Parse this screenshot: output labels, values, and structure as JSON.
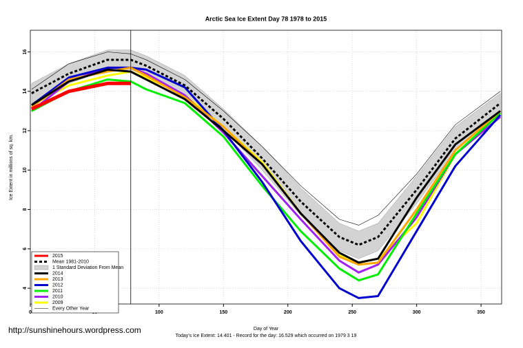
{
  "chart_data": {
    "type": "line",
    "title": "Arctic Sea Ice Extent Day 78 1978 to 2015",
    "y_label": "Ice Extent in millions of sq. km.",
    "x_label": "Day of Year",
    "footer": "Today's Ice Extent: 14.401  - Record for the day: 16.529 which occurred on 1979 3 19",
    "watermark": "http://sunshinehours.wordpress.com",
    "marker_day": 78,
    "xlim": [
      0,
      366
    ],
    "ylim": [
      3.2,
      17.1
    ],
    "xticks": [
      0,
      50,
      100,
      150,
      200,
      250,
      300,
      350
    ],
    "yticks": [
      4,
      6,
      8,
      10,
      12,
      14,
      16
    ],
    "grid": true,
    "legend": "bottom-left",
    "x": [
      1,
      30,
      60,
      78,
      90,
      120,
      150,
      180,
      210,
      240,
      255,
      270,
      300,
      330,
      365
    ],
    "band": {
      "name": "1 Standard Deviation From Mean",
      "color": "#d3d3d3",
      "lower": [
        13.4,
        14.4,
        15.1,
        15.1,
        14.8,
        13.8,
        12.1,
        10.0,
        7.7,
        5.9,
        5.5,
        5.9,
        8.3,
        11.0,
        12.9
      ],
      "upper": [
        14.4,
        15.4,
        16.1,
        16.1,
        15.8,
        14.8,
        13.1,
        11.2,
        9.1,
        7.3,
        6.9,
        7.3,
        9.7,
        12.2,
        13.9
      ]
    },
    "series": [
      {
        "name": "Every Other Year",
        "color": "#000000",
        "width": 0.6,
        "values": [
          14.1,
          15.4,
          16.0,
          15.9,
          15.6,
          14.6,
          13.0,
          11.2,
          9.2,
          7.5,
          7.2,
          7.7,
          9.8,
          12.3,
          14.0
        ]
      },
      {
        "name": "2009",
        "color": "#ffff00",
        "width": 3,
        "values": [
          13.3,
          14.3,
          14.8,
          15.0,
          14.7,
          13.8,
          12.2,
          10.4,
          7.8,
          5.7,
          5.3,
          5.5,
          7.3,
          10.8,
          12.9
        ]
      },
      {
        "name": "2010",
        "color": "#a020f0",
        "width": 3,
        "values": [
          13.0,
          14.5,
          15.2,
          15.2,
          14.9,
          13.8,
          11.9,
          9.7,
          7.5,
          5.4,
          4.8,
          5.2,
          7.6,
          10.8,
          12.7
        ]
      },
      {
        "name": "2011",
        "color": "#00ee00",
        "width": 3,
        "values": [
          13.0,
          14.0,
          14.6,
          14.5,
          14.1,
          13.4,
          11.7,
          9.2,
          6.9,
          5.0,
          4.4,
          4.7,
          7.8,
          10.8,
          12.9
        ]
      },
      {
        "name": "2012",
        "color": "#0000cd",
        "width": 3,
        "values": [
          13.3,
          14.7,
          15.2,
          15.2,
          15.1,
          14.2,
          12.0,
          9.4,
          6.4,
          4.0,
          3.5,
          3.6,
          6.9,
          10.2,
          12.8
        ]
      },
      {
        "name": "2013",
        "color": "#ffa500",
        "width": 3,
        "values": [
          13.2,
          14.6,
          15.0,
          15.2,
          14.8,
          13.7,
          12.2,
          10.3,
          7.8,
          5.6,
          5.2,
          5.3,
          8.0,
          11.0,
          13.0
        ]
      },
      {
        "name": "2014",
        "color": "#000000",
        "width": 3,
        "values": [
          13.3,
          14.5,
          15.1,
          15.0,
          14.6,
          13.6,
          12.0,
          10.3,
          7.8,
          5.8,
          5.3,
          5.5,
          8.6,
          11.3,
          13.0
        ]
      },
      {
        "name": "Mean 1981-2010",
        "color": "#000000",
        "width": 3,
        "dashed": true,
        "values": [
          13.9,
          14.9,
          15.6,
          15.6,
          15.3,
          14.3,
          12.6,
          10.6,
          8.4,
          6.6,
          6.2,
          6.6,
          9.0,
          11.6,
          13.4
        ]
      },
      {
        "name": "2015",
        "color": "#ff0000",
        "width": 5,
        "values": [
          13.1,
          14.0,
          14.4,
          14.4,
          null,
          null,
          null,
          null,
          null,
          null,
          null,
          null,
          null,
          null,
          null
        ]
      }
    ]
  }
}
